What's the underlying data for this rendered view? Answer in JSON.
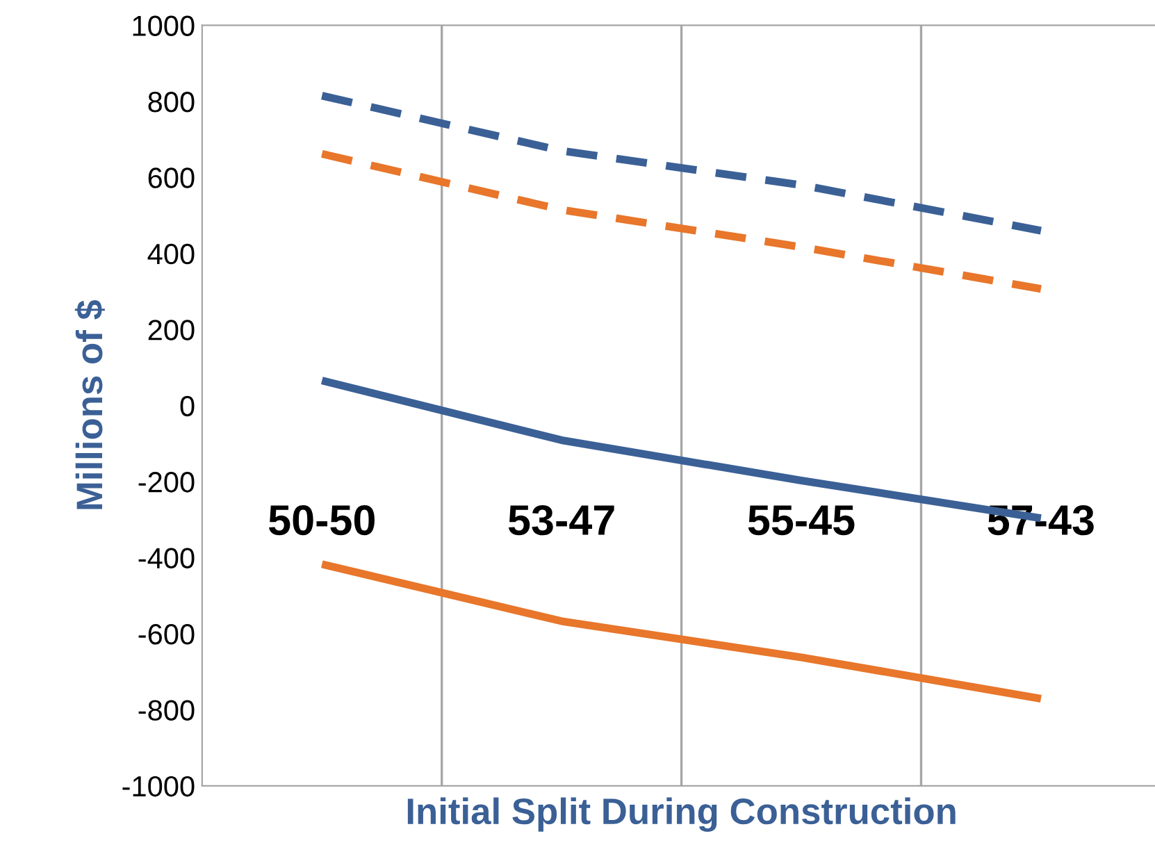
{
  "chart_data": {
    "type": "line",
    "xlabel": "Initial Split During Construction",
    "ylabel": "Millions of $",
    "categories": [
      "50-50",
      "53-47",
      "55-45",
      "57-43"
    ],
    "series": [
      {
        "color": "#3b6096",
        "values": [
          815,
          670,
          580,
          460
        ],
        "line_style": "dashed"
      },
      {
        "color": "#e8762b",
        "values": [
          662,
          515,
          417,
          307
        ],
        "line_style": "dashed"
      },
      {
        "color": "#3b6096",
        "values": [
          66,
          -91,
          -197,
          -296
        ],
        "line_style": "solid"
      },
      {
        "color": "#e8762b",
        "values": [
          -417,
          -567,
          -662,
          -771
        ],
        "line_style": "solid"
      }
    ],
    "ylim": [
      -1000,
      1000
    ],
    "yticks": [
      -1000,
      -800,
      -600,
      -400,
      -200,
      0,
      200,
      400,
      600,
      800,
      1000
    ],
    "grid": "x",
    "legend": false,
    "marker": "none"
  }
}
